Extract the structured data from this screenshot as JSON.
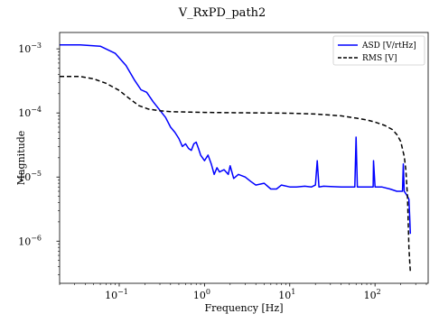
{
  "chart_data": {
    "type": "line",
    "title": "V_RxPD_path2",
    "xlabel": "Frequency [Hz]",
    "ylabel": "Magnitude",
    "xscale": "log",
    "yscale": "log",
    "xlim": [
      0.02,
      420
    ],
    "ylim": [
      2.2e-07,
      0.0018
    ],
    "grid": false,
    "legend_position": "top-right",
    "x_ticks": [
      {
        "base": "10",
        "exp": "−1",
        "value": 0.1
      },
      {
        "base": "10",
        "exp": "0",
        "value": 1
      },
      {
        "base": "10",
        "exp": "1",
        "value": 10
      },
      {
        "base": "10",
        "exp": "2",
        "value": 100
      }
    ],
    "y_ticks": [
      {
        "base": "10",
        "exp": "−6",
        "value": 1e-06
      },
      {
        "base": "10",
        "exp": "−5",
        "value": 1e-05
      },
      {
        "base": "10",
        "exp": "−4",
        "value": 0.0001
      },
      {
        "base": "10",
        "exp": "−3",
        "value": 0.001
      }
    ],
    "series": [
      {
        "name": "ASD [V/rtHz]",
        "color": "#0000ff",
        "style": "solid",
        "x": [
          0.02,
          0.035,
          0.06,
          0.09,
          0.12,
          0.15,
          0.18,
          0.21,
          0.25,
          0.3,
          0.35,
          0.4,
          0.45,
          0.5,
          0.55,
          0.6,
          0.65,
          0.7,
          0.75,
          0.8,
          0.85,
          0.9,
          1.0,
          1.1,
          1.2,
          1.3,
          1.4,
          1.5,
          1.7,
          1.9,
          2.0,
          2.2,
          2.5,
          3,
          3.5,
          4,
          5,
          6,
          7,
          8,
          10,
          12,
          15,
          18,
          20,
          21,
          22,
          25,
          30,
          40,
          50,
          58,
          60,
          62,
          70,
          80,
          90,
          95,
          96,
          100,
          120,
          150,
          180,
          200,
          210,
          215,
          220,
          230,
          240,
          250,
          255,
          260
        ],
        "y": [
          0.00115,
          0.00115,
          0.0011,
          0.00085,
          0.00055,
          0.00033,
          0.00023,
          0.00021,
          0.00015,
          0.00011,
          8.5e-05,
          6e-05,
          5e-05,
          4e-05,
          3e-05,
          3.3e-05,
          2.8e-05,
          2.6e-05,
          3.3e-05,
          3.5e-05,
          2.8e-05,
          2.2e-05,
          1.8e-05,
          2.2e-05,
          1.6e-05,
          1.1e-05,
          1.4e-05,
          1.2e-05,
          1.3e-05,
          1.1e-05,
          1.5e-05,
          9.5e-06,
          1.1e-05,
          1e-05,
          8.5e-06,
          7.5e-06,
          8e-06,
          6.5e-06,
          6.5e-06,
          7.5e-06,
          7e-06,
          7e-06,
          7.2e-06,
          7e-06,
          7.5e-06,
          1.8e-05,
          7e-06,
          7.2e-06,
          7.1e-06,
          7e-06,
          7e-06,
          7e-06,
          4.2e-05,
          7e-06,
          7e-06,
          7e-06,
          7e-06,
          7e-06,
          1.8e-05,
          7e-06,
          7e-06,
          6.5e-06,
          6e-06,
          6e-06,
          6e-06,
          1.6e-05,
          6e-06,
          5.5e-06,
          5e-06,
          4.5e-06,
          2.5e-06,
          1.3e-06
        ]
      },
      {
        "name": "RMS [V]",
        "color": "#000000",
        "style": "dashed",
        "x": [
          0.02,
          0.035,
          0.05,
          0.07,
          0.1,
          0.13,
          0.17,
          0.22,
          0.3,
          0.4,
          0.5,
          0.7,
          1,
          2,
          5,
          10,
          20,
          40,
          60,
          80,
          100,
          130,
          160,
          180,
          200,
          220,
          230,
          240,
          245,
          250,
          255,
          260
        ],
        "y": [
          0.00037,
          0.00037,
          0.00034,
          0.00029,
          0.000225,
          0.00017,
          0.00013,
          0.000115,
          0.000108,
          0.000105,
          0.000104,
          0.000103,
          0.000102,
          0.000101,
          0.0001,
          9.9e-05,
          9.6e-05,
          9e-05,
          8.3e-05,
          7.8e-05,
          7.2e-05,
          6.4e-05,
          5.5e-05,
          4.6e-05,
          3.6e-05,
          2.1e-05,
          1.3e-05,
          5e-06,
          2e-06,
          8e-07,
          5e-07,
          3.3e-07
        ]
      }
    ]
  }
}
